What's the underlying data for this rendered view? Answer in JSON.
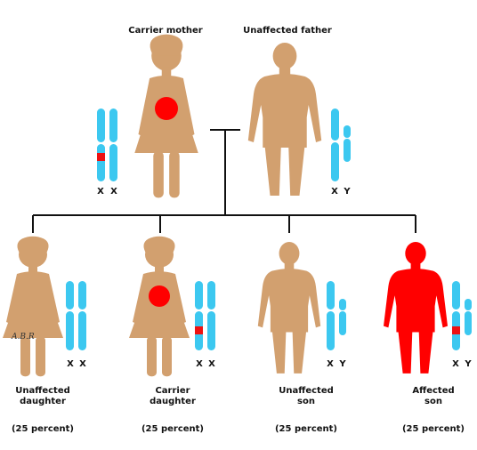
{
  "colors": {
    "skin": "#D2A06F",
    "affected": "#FF0000",
    "chromosome": "#3CC8F0",
    "gene_mark": "#EE1111",
    "line": "#111111"
  },
  "parents": {
    "mother": {
      "label": "Carrier mother",
      "chromosomes": [
        "X",
        "X"
      ],
      "icon": "female-figure-icon",
      "carrier": true
    },
    "father": {
      "label": "Unaffected father",
      "chromosomes": [
        "X",
        "Y"
      ],
      "icon": "male-figure-icon",
      "carrier": false
    }
  },
  "children": [
    {
      "line1": "Unaffected",
      "line2": "daughter",
      "percent": "(25 percent)",
      "chromosomes": [
        "X",
        "X"
      ],
      "sex": "female",
      "status": "unaffected",
      "signature": "A.B.R"
    },
    {
      "line1": "Carrier",
      "line2": "daughter",
      "percent": "(25 percent)",
      "chromosomes": [
        "X",
        "X"
      ],
      "sex": "female",
      "status": "carrier"
    },
    {
      "line1": "Unaffected",
      "line2": "son",
      "percent": "(25 percent)",
      "chromosomes": [
        "X",
        "Y"
      ],
      "sex": "male",
      "status": "unaffected"
    },
    {
      "line1": "Affected",
      "line2": "son",
      "percent": "(25 percent)",
      "chromosomes": [
        "X",
        "Y"
      ],
      "sex": "male",
      "status": "affected"
    }
  ]
}
